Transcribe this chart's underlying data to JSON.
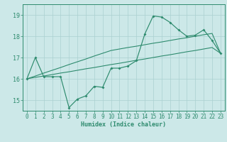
{
  "xlabel": "Humidex (Indice chaleur)",
  "x_values": [
    0,
    1,
    2,
    3,
    4,
    5,
    6,
    7,
    8,
    9,
    10,
    11,
    12,
    13,
    14,
    15,
    16,
    17,
    18,
    19,
    20,
    21,
    22,
    23
  ],
  "line1_y": [
    16.0,
    17.0,
    16.1,
    16.1,
    16.1,
    14.65,
    15.05,
    15.2,
    15.65,
    15.6,
    16.5,
    16.5,
    16.6,
    16.85,
    18.1,
    18.95,
    18.9,
    18.65,
    18.3,
    18.0,
    18.05,
    18.3,
    17.8,
    17.2
  ],
  "trend_upper_y": [
    16.0,
    16.13,
    16.27,
    16.4,
    16.53,
    16.67,
    16.8,
    16.93,
    17.07,
    17.2,
    17.33,
    17.4,
    17.47,
    17.53,
    17.6,
    17.67,
    17.73,
    17.8,
    17.87,
    17.93,
    18.0,
    18.07,
    18.13,
    17.2
  ],
  "trend_lower_y": [
    16.0,
    16.07,
    16.13,
    16.2,
    16.27,
    16.33,
    16.4,
    16.47,
    16.53,
    16.6,
    16.67,
    16.73,
    16.8,
    16.87,
    16.93,
    17.0,
    17.07,
    17.13,
    17.2,
    17.27,
    17.33,
    17.4,
    17.47,
    17.2
  ],
  "line_color": "#2e8b6e",
  "bg_color": "#cce8e8",
  "grid_color": "#aad0d0",
  "xlim": [
    -0.5,
    23.5
  ],
  "ylim": [
    14.5,
    19.5
  ],
  "yticks": [
    15,
    16,
    17,
    18,
    19
  ],
  "xticks": [
    0,
    1,
    2,
    3,
    4,
    5,
    6,
    7,
    8,
    9,
    10,
    11,
    12,
    13,
    14,
    15,
    16,
    17,
    18,
    19,
    20,
    21,
    22,
    23
  ],
  "tick_fontsize": 5.5,
  "xlabel_fontsize": 6.0
}
